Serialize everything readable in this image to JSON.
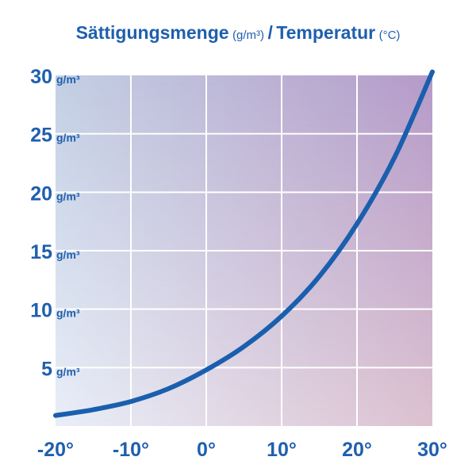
{
  "title": {
    "main": "Sättigungsmenge",
    "unit": "(g/m³)",
    "separator": "/",
    "second": "Temperatur",
    "second_unit": "(°C)"
  },
  "colors": {
    "text": "#1f5fae",
    "curve": "#1a5fae",
    "grid": "#ffffff",
    "bg_top_left": "#c3d0e4",
    "bg_top_right": "#b59bc9",
    "bg_bottom_left": "#e8eef8",
    "bg_bottom_right": "#dcc1d0"
  },
  "chart_data": {
    "type": "line",
    "title": "Sättigungsmenge (g/m³) / Temperatur (°C)",
    "xlabel": "",
    "ylabel": "",
    "xlim": [
      -20,
      30
    ],
    "ylim": [
      0,
      30
    ],
    "x_ticks": [
      -20,
      -10,
      0,
      10,
      20,
      30
    ],
    "x_tick_labels": [
      "-20°",
      "-10°",
      "0°",
      "10°",
      "20°",
      "30°"
    ],
    "y_ticks": [
      5,
      10,
      15,
      20,
      25,
      30
    ],
    "y_tick_labels": [
      "5",
      "10",
      "15",
      "20",
      "25",
      "30"
    ],
    "y_unit_label": "g/m³",
    "grid": true,
    "series": [
      {
        "x": [
          -20,
          -15,
          -10,
          -5,
          0,
          5,
          10,
          15,
          20,
          25,
          30
        ],
        "y": [
          0.9,
          1.4,
          2.1,
          3.2,
          4.8,
          6.8,
          9.4,
          12.8,
          17.3,
          23.0,
          30.3
        ]
      }
    ]
  }
}
